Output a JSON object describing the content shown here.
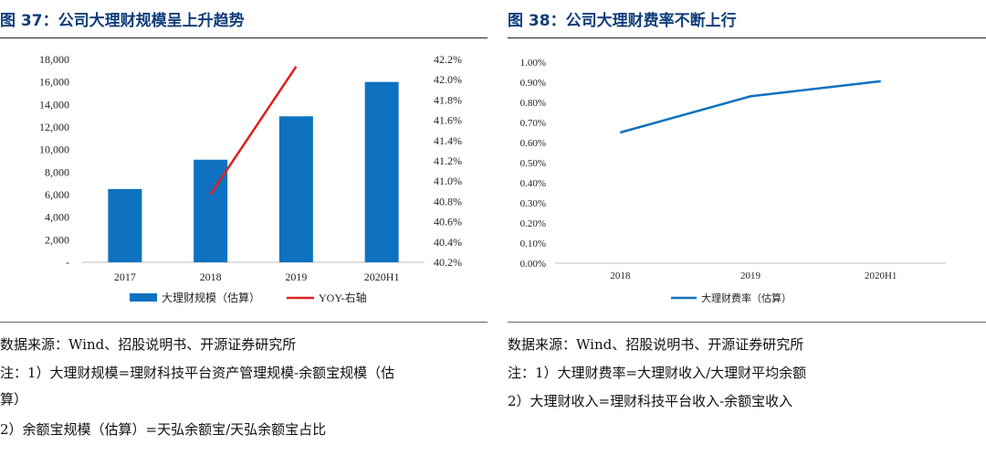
{
  "left_panel": {
    "title": "图 37：公司大理财规模呈上升趋势",
    "source": "数据来源：Wind、招股说明书、开源证券研究所",
    "note1": "注：1）大理财规模=理财科技平台资产管理规模-余额宝规模（估",
    "note1b": "算）",
    "note2": "2）余额宝规模（估算）=天弘余额宝/天弘余额宝占比"
  },
  "right_panel": {
    "title": "图 38：公司大理财费率不断上行",
    "source": "数据来源：Wind、招股说明书、开源证券研究所",
    "note1": "注：1）大理财费率=大理财收入/大理财平均余额",
    "note2": "2）大理财收入=理财科技平台收入-余额宝收入"
  },
  "chart_data": [
    {
      "type": "bar",
      "categories": [
        "2017",
        "2018",
        "2019",
        "2020H1"
      ],
      "series": [
        {
          "name": "大理财规模（估算）",
          "type": "bar",
          "axis": "left",
          "values": [
            6500,
            9100,
            12950,
            16000
          ],
          "color": "#0e72c0"
        },
        {
          "name": "YOY-右轴",
          "type": "line",
          "axis": "right",
          "x": [
            "2018",
            "2019"
          ],
          "values": [
            40.87,
            42.13
          ],
          "color": "#e0201d"
        }
      ],
      "ylim": [
        0,
        18000
      ],
      "yticks": [
        0,
        2000,
        4000,
        6000,
        8000,
        10000,
        12000,
        14000,
        16000,
        18000
      ],
      "ytick_labels": [
        "-",
        "2,000",
        "4,000",
        "6,000",
        "8,000",
        "10,000",
        "12,000",
        "14,000",
        "16,000",
        "18,000"
      ],
      "y2lim": [
        40.2,
        42.2
      ],
      "y2ticks": [
        40.2,
        40.4,
        40.6,
        40.8,
        41.0,
        41.2,
        41.4,
        41.6,
        41.8,
        42.0,
        42.2
      ],
      "y2tick_labels": [
        "40.2%",
        "40.4%",
        "40.6%",
        "40.8%",
        "41.0%",
        "41.2%",
        "41.4%",
        "41.6%",
        "41.8%",
        "42.0%",
        "42.2%"
      ],
      "legend": [
        "大理财规模（估算）",
        "YOY-右轴"
      ],
      "legend_position": "bottom"
    },
    {
      "type": "line",
      "categories": [
        "2018",
        "2019",
        "2020H1"
      ],
      "series": [
        {
          "name": "大理财费率（估算）",
          "values": [
            0.65,
            0.83,
            0.905
          ],
          "color": "#0e72c0"
        }
      ],
      "ylim": [
        0,
        1.0
      ],
      "yticks": [
        0,
        0.1,
        0.2,
        0.3,
        0.4,
        0.5,
        0.6,
        0.7,
        0.8,
        0.9,
        1.0
      ],
      "ytick_labels": [
        "0.00%",
        "0.10%",
        "0.20%",
        "0.30%",
        "0.40%",
        "0.50%",
        "0.60%",
        "0.70%",
        "0.80%",
        "0.90%",
        "1.00%"
      ],
      "legend": [
        "大理财费率（估算）"
      ],
      "legend_position": "bottom"
    }
  ]
}
